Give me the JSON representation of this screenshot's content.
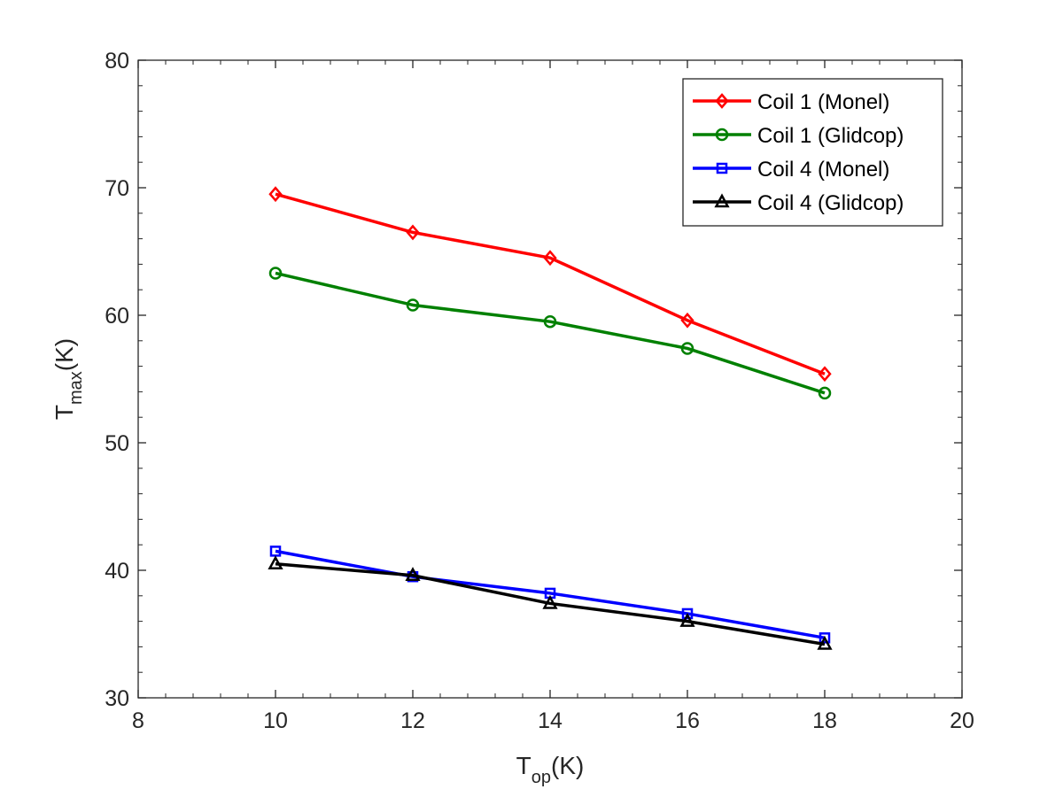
{
  "chart_data": {
    "type": "line",
    "title": "",
    "xlabel": {
      "base": "T",
      "sub": "op",
      "unit": "(K)"
    },
    "ylabel": {
      "base": "T",
      "sub": "max",
      "unit": "(K)"
    },
    "xlim": [
      8,
      20
    ],
    "ylim": [
      30,
      80
    ],
    "xticks": [
      8,
      10,
      12,
      14,
      16,
      18,
      20
    ],
    "yticks": [
      30,
      40,
      50,
      60,
      70,
      80
    ],
    "grid": false,
    "legend_position": "top-right",
    "x": [
      10,
      12,
      14,
      16,
      18
    ],
    "series": [
      {
        "name": "Coil 1 (Monel)",
        "color": "#ff0000",
        "marker": "diamond",
        "values": [
          69.5,
          66.5,
          64.5,
          59.6,
          55.4
        ]
      },
      {
        "name": "Coil 1 (Glidcop)",
        "color": "#008000",
        "marker": "circle",
        "values": [
          63.3,
          60.8,
          59.5,
          57.4,
          53.9
        ]
      },
      {
        "name": "Coil 4 (Monel)",
        "color": "#0000ff",
        "marker": "square",
        "values": [
          41.5,
          39.5,
          38.2,
          36.6,
          34.7
        ]
      },
      {
        "name": "Coil 4 (Glidcop)",
        "color": "#000000",
        "marker": "triangle",
        "values": [
          40.5,
          39.6,
          37.4,
          36.0,
          34.2
        ]
      }
    ]
  }
}
